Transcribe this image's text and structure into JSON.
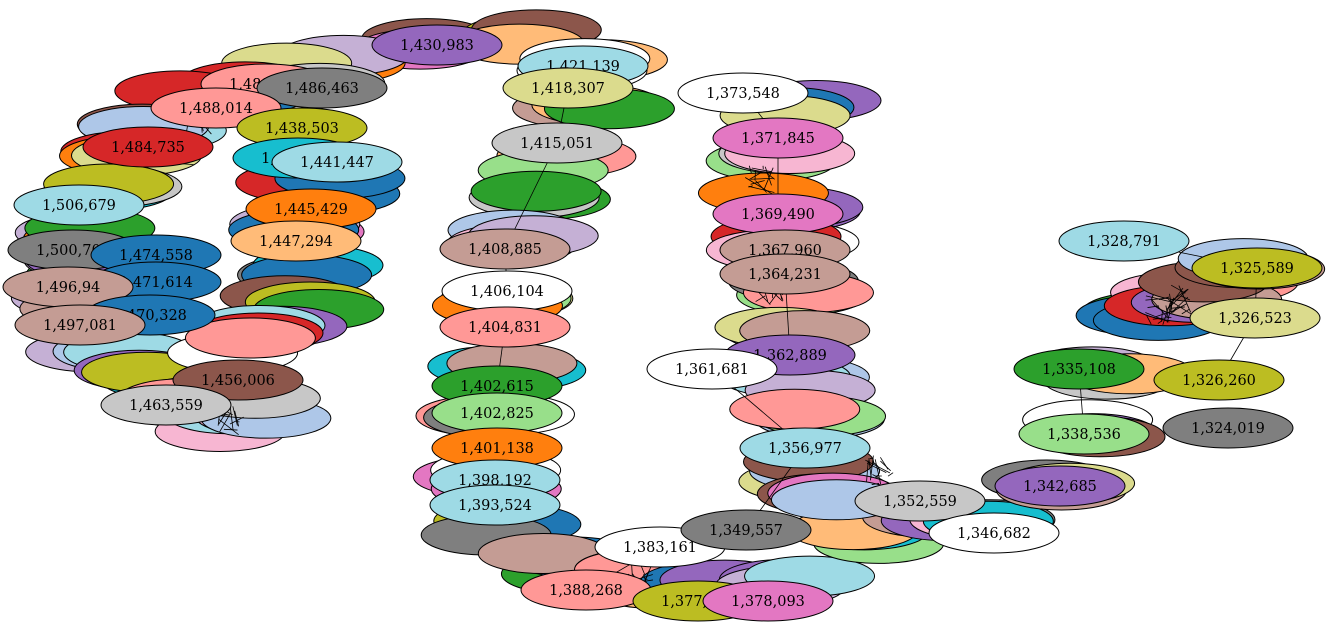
{
  "graph": {
    "type": "force-directed node graph",
    "palette": {
      "blue": "#1f77b4",
      "light-blue": "#aec7e8",
      "orange": "#ff7f0e",
      "light-orange": "#ffbb78",
      "green": "#2ca02c",
      "light-green": "#98df8a",
      "red": "#d62728",
      "pink": "#ff9896",
      "purple": "#9467bd",
      "lavender": "#c5b0d5",
      "brown": "#8c564b",
      "rose": "#c49c94",
      "magenta": "#e377c2",
      "light-magenta": "#f7b6d2",
      "gray": "#7f7f7f",
      "light-gray": "#c7c7c7",
      "olive": "#bcbd22",
      "khaki": "#dbdb8d",
      "cyan": "#17becf",
      "light-cyan": "#9edae5",
      "white": "#ffffff"
    },
    "nodes": [
      {
        "label": "1,430,983",
        "color": "purple"
      },
      {
        "label": "1,488,425",
        "color": "pink"
      },
      {
        "label": "1,486,463",
        "color": "gray"
      },
      {
        "label": "1,488,014",
        "color": "pink"
      },
      {
        "label": "1,438,503",
        "color": "olive"
      },
      {
        "label": "1,484,735",
        "color": "red"
      },
      {
        "label": "1,440,393",
        "color": "cyan"
      },
      {
        "label": "1,441,447",
        "color": "light-cyan"
      },
      {
        "label": "1,506,679",
        "color": "light-cyan"
      },
      {
        "label": "1,445,429",
        "color": "orange"
      },
      {
        "label": "1,447,294",
        "color": "light-orange"
      },
      {
        "label": "1,500,705",
        "color": "gray"
      },
      {
        "label": "1,474,558",
        "color": "blue"
      },
      {
        "label": "1,471,614",
        "color": "blue"
      },
      {
        "label": "1,496,94",
        "color": "rose"
      },
      {
        "label": "1,470,328",
        "color": "blue"
      },
      {
        "label": "1,497,081",
        "color": "rose"
      },
      {
        "label": "1,456,006",
        "color": "brown"
      },
      {
        "label": "1,463,559",
        "color": "light-gray"
      },
      {
        "label": "1,421,139",
        "color": "light-cyan"
      },
      {
        "label": "1,418,307",
        "color": "khaki"
      },
      {
        "label": "1,415,051",
        "color": "light-gray"
      },
      {
        "label": "1,408,885",
        "color": "rose"
      },
      {
        "label": "1,406,104",
        "color": "white"
      },
      {
        "label": "1,404,831",
        "color": "pink"
      },
      {
        "label": "1,402,615",
        "color": "green"
      },
      {
        "label": "1,402,825",
        "color": "light-green"
      },
      {
        "label": "1,401,138",
        "color": "orange"
      },
      {
        "label": "1,398,192",
        "color": "light-cyan"
      },
      {
        "label": "1,393,524",
        "color": "light-cyan"
      },
      {
        "label": "1,383,161",
        "color": "white"
      },
      {
        "label": "1,388,268",
        "color": "pink"
      },
      {
        "label": "1,377,372",
        "color": "olive"
      },
      {
        "label": "1,378,093",
        "color": "magenta"
      },
      {
        "label": "1,373,548",
        "color": "white"
      },
      {
        "label": "1,371,845",
        "color": "magenta"
      },
      {
        "label": "1,369,490",
        "color": "magenta"
      },
      {
        "label": "1,367,960",
        "color": "rose"
      },
      {
        "label": "1,364,231",
        "color": "rose"
      },
      {
        "label": "1,362,889",
        "color": "purple"
      },
      {
        "label": "1,361,681",
        "color": "white"
      },
      {
        "label": "1,356,977",
        "color": "light-cyan"
      },
      {
        "label": "1,349,557",
        "color": "gray"
      },
      {
        "label": "1,352,559",
        "color": "light-gray"
      },
      {
        "label": "1,346,682",
        "color": "white"
      },
      {
        "label": "1,328,791",
        "color": "light-cyan"
      },
      {
        "label": "1,325,589",
        "color": "olive"
      },
      {
        "label": "1,326,523",
        "color": "khaki"
      },
      {
        "label": "1,326,260",
        "color": "olive"
      },
      {
        "label": "1,335,108",
        "color": "green"
      },
      {
        "label": "1,338,536",
        "color": "light-green"
      },
      {
        "label": "1,324,019",
        "color": "gray"
      },
      {
        "label": "1,342,685",
        "color": "purple"
      }
    ]
  }
}
